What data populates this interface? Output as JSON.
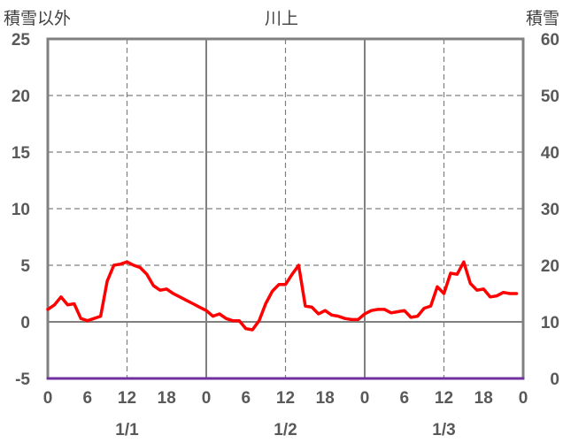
{
  "chart_data": {
    "type": "line",
    "title": "川上",
    "left_axis_label": "積雪以外",
    "right_axis_label": "積雪",
    "y_left": {
      "min": -5,
      "max": 25,
      "ticks": [
        25,
        20,
        15,
        10,
        5,
        0,
        -5
      ]
    },
    "y_right": {
      "min": 0,
      "max": 60,
      "ticks": [
        60,
        50,
        40,
        30,
        20,
        10,
        0
      ]
    },
    "x": {
      "min": 0,
      "max": 72,
      "tick_labels": [
        "0",
        "6",
        "12",
        "18",
        "0",
        "6",
        "12",
        "18",
        "0",
        "6",
        "12",
        "18",
        "0"
      ],
      "day_labels": [
        "1/1",
        "1/2",
        "1/3"
      ]
    },
    "series": [
      {
        "color": "#ff0000",
        "axis": "left",
        "x": [
          0,
          1,
          2,
          3,
          4,
          5,
          6,
          7,
          8,
          9,
          10,
          11,
          12,
          13,
          14,
          15,
          16,
          17,
          18,
          19,
          20,
          21,
          22,
          23,
          24,
          25,
          26,
          27,
          28,
          29,
          30,
          31,
          32,
          33,
          34,
          35,
          36,
          37,
          38,
          39,
          40,
          41,
          42,
          43,
          44,
          45,
          46,
          47,
          48,
          49,
          50,
          51,
          52,
          53,
          54,
          55,
          56,
          57,
          58,
          59,
          60,
          61,
          62,
          63,
          64,
          65,
          66,
          67,
          68,
          69,
          70,
          71
        ],
        "values": [
          1.1,
          1.5,
          2.2,
          1.5,
          1.6,
          0.3,
          0.1,
          0.3,
          0.5,
          3.6,
          5.0,
          5.1,
          5.3,
          5.0,
          4.8,
          4.2,
          3.2,
          2.8,
          2.9,
          2.5,
          2.2,
          1.9,
          1.6,
          1.3,
          1.0,
          0.5,
          0.7,
          0.3,
          0.1,
          0.1,
          -0.6,
          -0.7,
          0.1,
          1.6,
          2.7,
          3.3,
          3.3,
          4.2,
          5.0,
          1.4,
          1.3,
          0.7,
          1.0,
          0.6,
          0.5,
          0.3,
          0.2,
          0.2,
          0.7,
          1.0,
          1.1,
          1.1,
          0.8,
          0.9,
          1.0,
          0.4,
          0.5,
          1.2,
          1.4,
          3.1,
          2.5,
          4.3,
          4.2,
          5.3,
          3.4,
          2.8,
          2.9,
          2.2,
          2.3,
          2.6,
          2.5,
          2.5
        ]
      },
      {
        "color": "#7030a0",
        "axis": "right",
        "x": [
          0,
          72
        ],
        "values": [
          0,
          0
        ]
      }
    ],
    "grid": true
  }
}
